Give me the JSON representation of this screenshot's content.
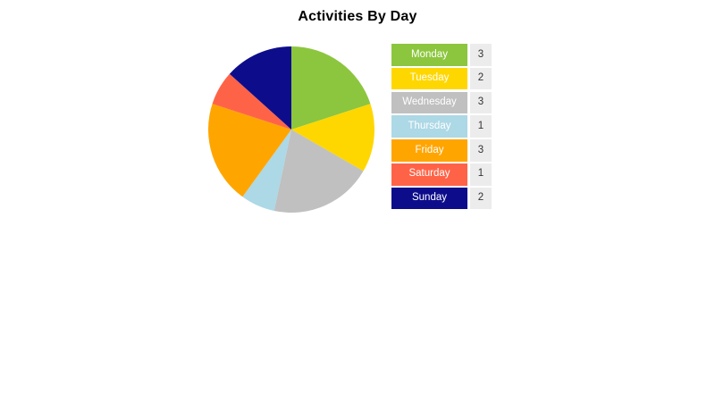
{
  "page": {
    "background": "#ffffff"
  },
  "chart_data": {
    "type": "pie",
    "title": "Activities By Day",
    "title_color": "#000000",
    "categories": [
      "Monday",
      "Tuesday",
      "Wednesday",
      "Thursday",
      "Friday",
      "Saturday",
      "Sunday"
    ],
    "values": [
      3,
      2,
      3,
      1,
      3,
      1,
      2
    ],
    "total": 15,
    "colors": [
      "#8CC63E",
      "#FFD700",
      "#C0C0C0",
      "#ADD8E6",
      "#FFA500",
      "#FF6347",
      "#0D0D8C"
    ],
    "start_angle": "top",
    "direction": "clockwise",
    "legend_position": "right",
    "legend": {
      "label_text_color": "#ffffff",
      "value_cell_bg": "#ececec",
      "value_text_color": "#333333"
    }
  }
}
